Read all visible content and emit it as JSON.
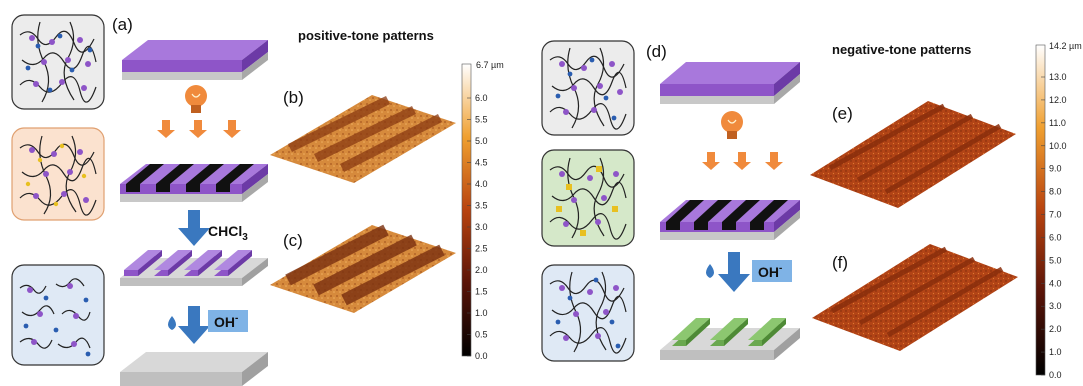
{
  "panels": {
    "a": "(a)",
    "b": "(b)",
    "c": "(c)",
    "d": "(d)",
    "e": "(e)",
    "f": "(f)"
  },
  "positive": {
    "title": "positive-tone patterns",
    "solvent": "CHCl",
    "solvent_sub": "3",
    "base": "OH",
    "base_sup": "-"
  },
  "negative": {
    "title": "negative-tone patterns",
    "base": "OH",
    "base_sup": "-"
  },
  "scale_left": {
    "max_label": "6.7 µm",
    "ticks": [
      "6.0",
      "5.5",
      "5.0",
      "4.5",
      "4.0",
      "3.5",
      "3.0",
      "2.5",
      "2.0",
      "1.5",
      "1.0",
      "0.5",
      "0.0"
    ]
  },
  "scale_right": {
    "max_label": "14.2 µm",
    "ticks": [
      "13.0",
      "12.0",
      "11.0",
      "10.0",
      "9.0",
      "8.0",
      "7.0",
      "6.0",
      "5.0",
      "4.0",
      "3.0",
      "2.0",
      "1.0",
      "0.0"
    ]
  },
  "colors": {
    "purple": "#8e55c8",
    "orange": "#f08a3c",
    "blue_arrow": "#3a78bf",
    "green_bar": "#6aa84f",
    "box_gray": "#ececec",
    "box_peach": "#fbe2cf",
    "box_blue": "#dfe9f5",
    "box_green": "#d5e8c9"
  }
}
